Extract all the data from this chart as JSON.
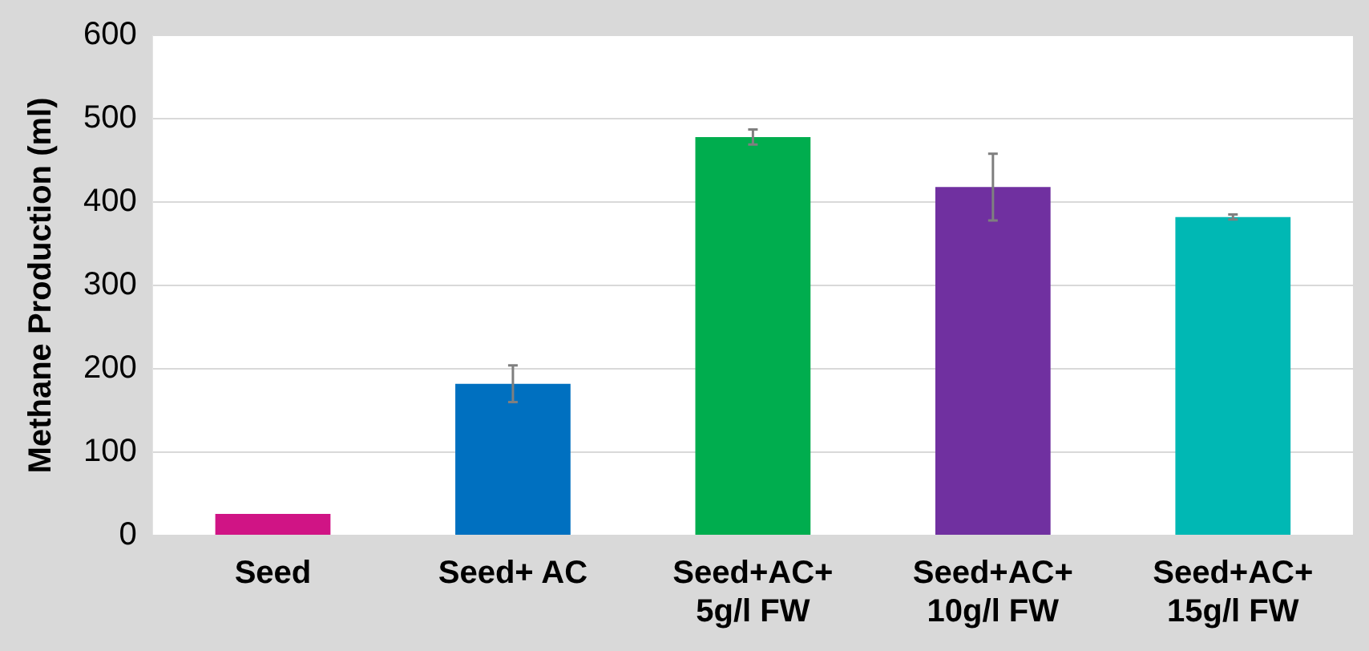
{
  "chart_data": {
    "type": "bar",
    "ylabel": "Methane Production (ml)",
    "categories": [
      "Seed",
      "Seed+ AC",
      "Seed+AC+\n5g/l FW",
      "Seed+AC+\n10g/l FW",
      "Seed+AC+\n15g/l FW"
    ],
    "values": [
      26,
      182,
      478,
      418,
      382
    ],
    "colors": [
      "#d01485",
      "#0070c0",
      "#00ad4e",
      "#7030a0",
      "#00b8b4"
    ],
    "errors": [
      null,
      22,
      9,
      40,
      3
    ],
    "ylim": [
      0,
      600
    ],
    "yticks": [
      0,
      100,
      200,
      300,
      400,
      500,
      600
    ],
    "grid": "y",
    "legend": false
  }
}
